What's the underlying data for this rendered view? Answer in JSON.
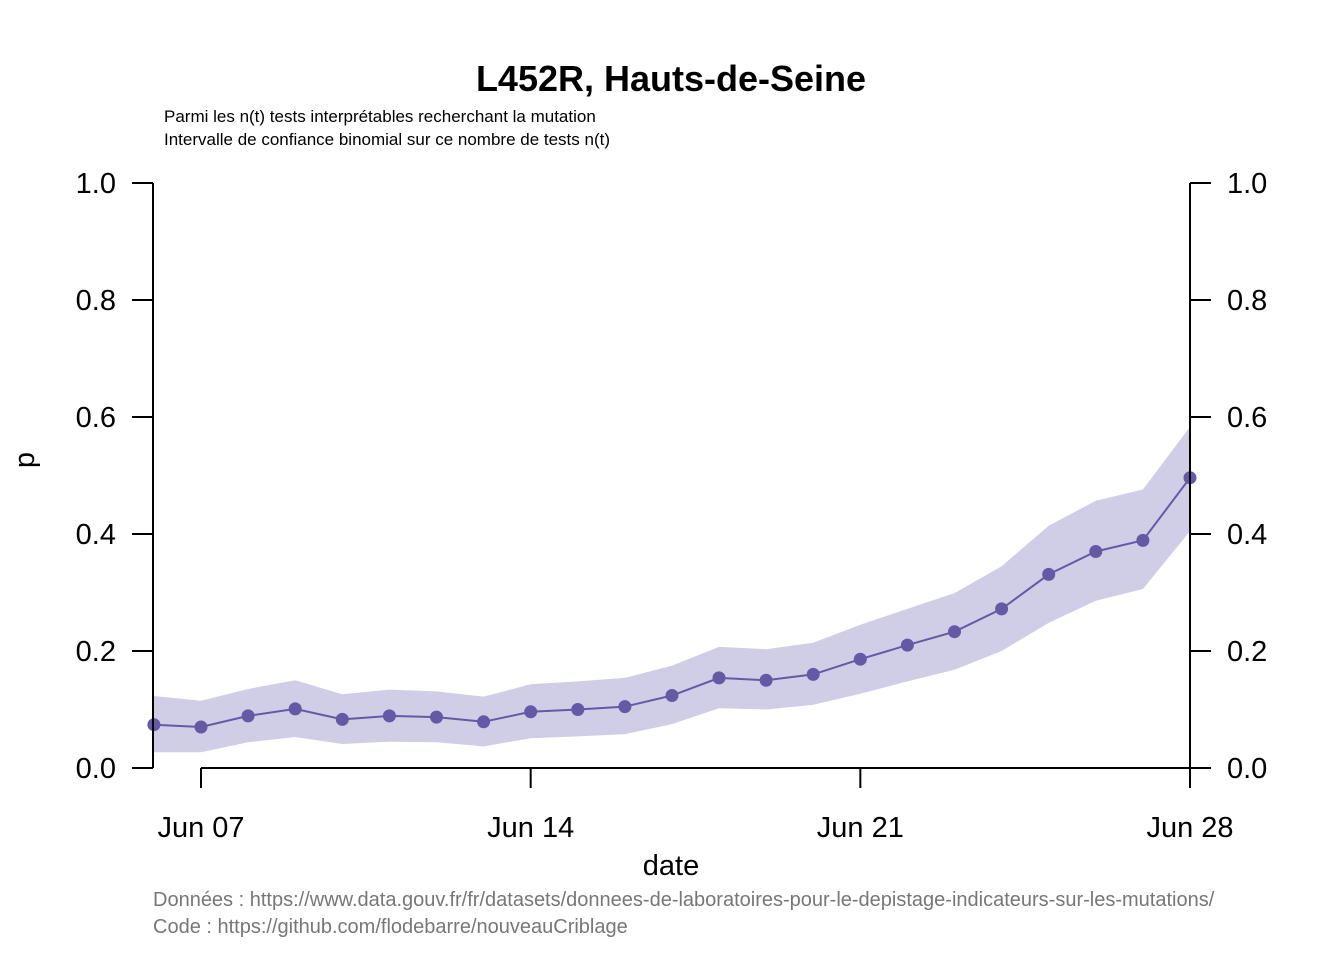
{
  "chart_data": {
    "type": "line",
    "title": "L452R, Hauts-de-Seine",
    "subtitle_lines": [
      "Parmi les n(t) tests interprétables recherchant la mutation",
      "Intervalle de confiance binomial sur ce nombre de tests n(t)"
    ],
    "xlabel": "date",
    "ylabel": "p",
    "x_dates": [
      "2021-06-06",
      "2021-06-07",
      "2021-06-08",
      "2021-06-09",
      "2021-06-10",
      "2021-06-11",
      "2021-06-12",
      "2021-06-13",
      "2021-06-14",
      "2021-06-15",
      "2021-06-16",
      "2021-06-17",
      "2021-06-18",
      "2021-06-19",
      "2021-06-20",
      "2021-06-21",
      "2021-06-22",
      "2021-06-23",
      "2021-06-24",
      "2021-06-25",
      "2021-06-26",
      "2021-06-27",
      "2021-06-28"
    ],
    "x_tick_labels": [
      {
        "date": "2021-06-07",
        "label": "Jun 07"
      },
      {
        "date": "2021-06-14",
        "label": "Jun 14"
      },
      {
        "date": "2021-06-21",
        "label": "Jun 21"
      },
      {
        "date": "2021-06-28",
        "label": "Jun 28"
      }
    ],
    "series": [
      {
        "values": [
          0.074,
          0.07,
          0.089,
          0.101,
          0.083,
          0.089,
          0.087,
          0.079,
          0.096,
          0.1,
          0.105,
          0.124,
          0.154,
          0.15,
          0.16,
          0.186,
          0.21,
          0.233,
          0.272,
          0.331,
          0.37,
          0.389,
          0.496
        ],
        "lower": [
          0.027,
          0.027,
          0.044,
          0.053,
          0.041,
          0.045,
          0.044,
          0.037,
          0.051,
          0.054,
          0.058,
          0.075,
          0.102,
          0.1,
          0.108,
          0.127,
          0.148,
          0.168,
          0.2,
          0.248,
          0.286,
          0.306,
          0.405
        ],
        "upper": [
          0.123,
          0.115,
          0.135,
          0.15,
          0.126,
          0.134,
          0.131,
          0.122,
          0.143,
          0.148,
          0.154,
          0.175,
          0.207,
          0.203,
          0.214,
          0.245,
          0.272,
          0.299,
          0.345,
          0.414,
          0.457,
          0.476,
          0.583
        ],
        "color": "#6559a6",
        "band_color": "#d0cde6"
      }
    ],
    "y_ticks": [
      "0.0",
      "0.2",
      "0.4",
      "0.6",
      "0.8",
      "1.0"
    ],
    "ylim": [
      0,
      1
    ],
    "grid": false,
    "legend": "none",
    "right_axis": true
  },
  "footer": {
    "data_source": "Données : https://www.data.gouv.fr/fr/datasets/donnees-de-laboratoires-pour-le-depistage-indicateurs-sur-les-mutations/",
    "code_source": "Code : https://github.com/flodebarre/nouveauCriblage"
  }
}
